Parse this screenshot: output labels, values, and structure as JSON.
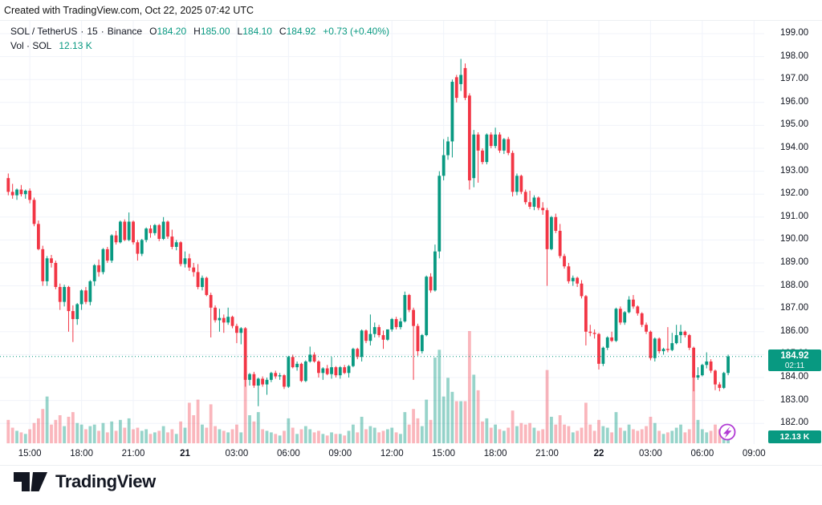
{
  "topbar": {
    "text": "Created with TradingView.com, Oct 22, 2025 07:42 UTC"
  },
  "header": {
    "symbol": "SOL / TetherUS",
    "separator": "·",
    "interval": "15",
    "exchange": "Binance",
    "o_label": "O",
    "o_value": "184.20",
    "h_label": "H",
    "h_value": "185.00",
    "l_label": "L",
    "l_value": "184.10",
    "c_label": "C",
    "c_value": "184.92",
    "change": "+0.73 (+0.40%)"
  },
  "legend": {
    "vol_label": "Vol · SOL",
    "vol_value": "12.13 K"
  },
  "price_line": {
    "price": "184.92",
    "price_value": 184.92,
    "countdown": "02:11"
  },
  "volume_badge": {
    "value": "12.13 K"
  },
  "footer": {
    "brand": "TradingView"
  },
  "colors": {
    "up": "#089981",
    "down": "#F23645",
    "vol_up": "rgba(8,153,129,0.42)",
    "vol_down": "rgba(242,54,69,0.36)",
    "grid": "#F0F3FA",
    "axis_text": "#131722",
    "badge": "#089981",
    "flame": "#B13BD4"
  },
  "price_axis": {
    "labels": [
      "199.00",
      "198.00",
      "197.00",
      "196.00",
      "195.00",
      "194.00",
      "193.00",
      "192.00",
      "191.00",
      "190.00",
      "189.00",
      "188.00",
      "187.00",
      "186.00",
      "185.00",
      "184.00",
      "183.00",
      "182.00"
    ],
    "min": 182,
    "max": 199
  },
  "time_axis": {
    "ticks": [
      {
        "label": "15:00",
        "i": 5,
        "bold": false
      },
      {
        "label": "18:00",
        "i": 17,
        "bold": false
      },
      {
        "label": "21:00",
        "i": 29,
        "bold": false
      },
      {
        "label": "21",
        "i": 41,
        "bold": true
      },
      {
        "label": "03:00",
        "i": 53,
        "bold": false
      },
      {
        "label": "06:00",
        "i": 65,
        "bold": false
      },
      {
        "label": "09:00",
        "i": 77,
        "bold": false
      },
      {
        "label": "12:00",
        "i": 89,
        "bold": false
      },
      {
        "label": "15:00",
        "i": 101,
        "bold": false
      },
      {
        "label": "18:00",
        "i": 113,
        "bold": false
      },
      {
        "label": "21:00",
        "i": 125,
        "bold": false
      },
      {
        "label": "22",
        "i": 137,
        "bold": true
      },
      {
        "label": "03:00",
        "i": 149,
        "bold": false
      },
      {
        "label": "06:00",
        "i": 161,
        "bold": false
      },
      {
        "label": "09:00",
        "i": 173,
        "bold": false
      }
    ]
  },
  "chart_data": {
    "type": "candlestick",
    "title": "SOL / TetherUS · 15 · Binance",
    "interval_minutes": 15,
    "first_bar_time": "Oct 20 13:45 UTC",
    "last_bar_time": "Oct 22 07:30 UTC",
    "ylim": [
      182,
      199
    ],
    "grid": true,
    "last_price": 184.92,
    "last_volume_k": 12.13,
    "columns": [
      "open",
      "high",
      "low",
      "close",
      "volume_k"
    ],
    "volume_axis": {
      "max_k": 72
    },
    "candles": [
      [
        192.7,
        192.9,
        191.95,
        192.1,
        15
      ],
      [
        192.1,
        192.45,
        191.8,
        191.95,
        10
      ],
      [
        191.95,
        192.25,
        191.75,
        192.2,
        8
      ],
      [
        192.2,
        192.4,
        191.9,
        192.0,
        7
      ],
      [
        192.0,
        192.2,
        191.8,
        192.15,
        6
      ],
      [
        192.15,
        192.25,
        191.6,
        191.75,
        9
      ],
      [
        191.75,
        191.85,
        190.6,
        190.7,
        13
      ],
      [
        190.7,
        190.85,
        189.55,
        189.6,
        16
      ],
      [
        189.6,
        189.75,
        188.0,
        188.2,
        22
      ],
      [
        188.2,
        189.3,
        188.0,
        189.2,
        30
      ],
      [
        189.2,
        189.35,
        188.8,
        189.0,
        12
      ],
      [
        189.0,
        189.1,
        187.85,
        187.95,
        15
      ],
      [
        187.95,
        188.1,
        186.95,
        187.3,
        18
      ],
      [
        187.3,
        188.05,
        187.1,
        187.95,
        11
      ],
      [
        187.95,
        188.0,
        186.0,
        186.9,
        17
      ],
      [
        186.9,
        187.15,
        185.55,
        186.55,
        20
      ],
      [
        186.55,
        187.25,
        186.3,
        187.2,
        13
      ],
      [
        187.2,
        187.85,
        186.95,
        187.8,
        12
      ],
      [
        187.8,
        187.95,
        187.2,
        187.3,
        9
      ],
      [
        187.3,
        188.25,
        187.15,
        188.2,
        11
      ],
      [
        188.2,
        188.95,
        188.0,
        188.9,
        12
      ],
      [
        188.9,
        189.15,
        188.4,
        188.6,
        8
      ],
      [
        188.6,
        189.65,
        188.5,
        189.6,
        13
      ],
      [
        189.6,
        189.7,
        189.0,
        189.1,
        7
      ],
      [
        189.1,
        190.25,
        189.0,
        190.2,
        14
      ],
      [
        190.2,
        190.4,
        189.8,
        189.9,
        8
      ],
      [
        189.9,
        190.85,
        189.85,
        190.8,
        15
      ],
      [
        190.8,
        190.9,
        189.95,
        190.0,
        10
      ],
      [
        190.0,
        191.2,
        189.95,
        190.8,
        16
      ],
      [
        190.8,
        190.85,
        189.8,
        189.9,
        9
      ],
      [
        189.9,
        190.0,
        189.1,
        189.4,
        10
      ],
      [
        189.4,
        190.05,
        189.3,
        190.0,
        8
      ],
      [
        190.0,
        190.55,
        189.9,
        190.5,
        9
      ],
      [
        190.5,
        190.65,
        190.1,
        190.3,
        6
      ],
      [
        190.3,
        190.7,
        190.2,
        190.65,
        7
      ],
      [
        190.65,
        190.7,
        189.95,
        190.05,
        8
      ],
      [
        190.05,
        191.0,
        190.0,
        190.8,
        11
      ],
      [
        190.8,
        190.85,
        190.05,
        190.15,
        7
      ],
      [
        190.15,
        190.45,
        189.6,
        189.7,
        9
      ],
      [
        189.7,
        190.0,
        189.55,
        189.9,
        6
      ],
      [
        189.9,
        189.95,
        188.85,
        188.95,
        14
      ],
      [
        188.95,
        189.5,
        188.8,
        189.2,
        10
      ],
      [
        189.2,
        189.4,
        188.65,
        188.8,
        26
      ],
      [
        188.8,
        189.0,
        188.4,
        188.6,
        18
      ],
      [
        188.6,
        188.95,
        187.85,
        187.95,
        28
      ],
      [
        187.95,
        188.45,
        187.8,
        188.35,
        12
      ],
      [
        188.35,
        188.4,
        187.55,
        187.6,
        10
      ],
      [
        187.6,
        187.7,
        185.75,
        187.05,
        25
      ],
      [
        187.05,
        187.15,
        186.4,
        186.5,
        11
      ],
      [
        186.5,
        187.0,
        186.0,
        186.6,
        9
      ],
      [
        186.6,
        186.75,
        185.95,
        186.4,
        8
      ],
      [
        186.4,
        187.05,
        186.3,
        186.65,
        7
      ],
      [
        186.65,
        186.7,
        186.15,
        186.25,
        9
      ],
      [
        186.25,
        186.35,
        185.5,
        185.95,
        12
      ],
      [
        185.95,
        186.2,
        185.45,
        186.15,
        7
      ],
      [
        186.15,
        186.2,
        183.6,
        183.9,
        45
      ],
      [
        183.9,
        184.2,
        183.65,
        184.15,
        18
      ],
      [
        184.15,
        184.25,
        183.55,
        183.65,
        14
      ],
      [
        183.65,
        184.0,
        182.75,
        183.95,
        20
      ],
      [
        183.95,
        184.05,
        183.6,
        183.7,
        9
      ],
      [
        183.7,
        184.0,
        183.25,
        183.9,
        8
      ],
      [
        183.9,
        184.25,
        183.8,
        184.2,
        7
      ],
      [
        184.2,
        184.3,
        183.95,
        184.05,
        6
      ],
      [
        184.05,
        184.2,
        183.9,
        184.1,
        5
      ],
      [
        184.1,
        184.15,
        183.5,
        183.6,
        8
      ],
      [
        183.6,
        184.95,
        183.55,
        184.9,
        16
      ],
      [
        184.9,
        185.0,
        184.4,
        184.45,
        10
      ],
      [
        184.45,
        184.7,
        184.3,
        184.6,
        6
      ],
      [
        184.6,
        184.65,
        183.8,
        183.85,
        9
      ],
      [
        183.85,
        184.75,
        183.8,
        184.7,
        11
      ],
      [
        184.7,
        185.35,
        184.65,
        185.0,
        9
      ],
      [
        185.0,
        185.1,
        184.65,
        184.7,
        7
      ],
      [
        184.7,
        184.75,
        184.0,
        184.2,
        8
      ],
      [
        184.2,
        184.45,
        183.9,
        184.4,
        6
      ],
      [
        184.4,
        184.55,
        184.1,
        184.15,
        5
      ],
      [
        184.15,
        184.9,
        183.95,
        184.45,
        7
      ],
      [
        184.45,
        184.5,
        184.0,
        184.1,
        6
      ],
      [
        184.1,
        184.5,
        183.95,
        184.45,
        6
      ],
      [
        184.45,
        184.55,
        184.15,
        184.2,
        5
      ],
      [
        184.2,
        184.55,
        184.0,
        184.5,
        8
      ],
      [
        184.5,
        185.3,
        184.45,
        185.25,
        12
      ],
      [
        185.25,
        185.3,
        184.8,
        184.9,
        7
      ],
      [
        184.9,
        186.1,
        184.7,
        186.05,
        17
      ],
      [
        186.05,
        186.1,
        185.5,
        185.6,
        9
      ],
      [
        185.6,
        186.75,
        185.4,
        185.9,
        11
      ],
      [
        185.9,
        186.4,
        185.75,
        186.2,
        10
      ],
      [
        186.2,
        186.3,
        185.75,
        185.85,
        7
      ],
      [
        185.85,
        186.05,
        185.25,
        185.65,
        8
      ],
      [
        185.65,
        186.1,
        185.6,
        186.1,
        9
      ],
      [
        186.1,
        186.6,
        186.0,
        186.55,
        10
      ],
      [
        186.55,
        186.65,
        186.1,
        186.2,
        7
      ],
      [
        186.2,
        186.6,
        186.1,
        186.45,
        6
      ],
      [
        186.45,
        187.75,
        186.4,
        187.6,
        20
      ],
      [
        187.6,
        187.65,
        186.85,
        186.95,
        12
      ],
      [
        186.95,
        187.05,
        183.9,
        186.25,
        22
      ],
      [
        186.25,
        186.35,
        184.95,
        185.15,
        16
      ],
      [
        185.15,
        185.9,
        185.05,
        185.85,
        11
      ],
      [
        185.85,
        188.45,
        185.8,
        188.4,
        28
      ],
      [
        188.4,
        188.55,
        187.7,
        187.8,
        15
      ],
      [
        187.8,
        189.8,
        187.75,
        189.5,
        55
      ],
      [
        189.5,
        193.0,
        189.2,
        192.8,
        60
      ],
      [
        192.8,
        194.4,
        192.6,
        193.7,
        30
      ],
      [
        193.7,
        194.5,
        193.5,
        194.3,
        42
      ],
      [
        194.3,
        197.0,
        193.6,
        196.9,
        33
      ],
      [
        197.1,
        197.2,
        196.0,
        196.2,
        27
      ],
      [
        196.8,
        197.9,
        196.5,
        197.2,
        27
      ],
      [
        197.5,
        197.7,
        196.1,
        196.2,
        27
      ],
      [
        196.3,
        196.4,
        192.2,
        192.6,
        72
      ],
      [
        192.7,
        194.8,
        192.3,
        194.6,
        44
      ],
      [
        194.6,
        194.7,
        192.5,
        193.9,
        34
      ],
      [
        193.9,
        194.0,
        193.3,
        193.4,
        14
      ],
      [
        193.4,
        194.65,
        193.3,
        194.6,
        16
      ],
      [
        194.6,
        194.7,
        194.0,
        194.1,
        10
      ],
      [
        194.1,
        194.9,
        194.0,
        194.6,
        12
      ],
      [
        194.6,
        194.7,
        193.8,
        193.9,
        9
      ],
      [
        193.9,
        194.45,
        193.75,
        194.4,
        8
      ],
      [
        194.4,
        194.5,
        193.7,
        193.8,
        10
      ],
      [
        193.8,
        193.9,
        191.9,
        192.1,
        21
      ],
      [
        192.1,
        192.9,
        191.95,
        192.8,
        11
      ],
      [
        192.8,
        192.85,
        192.0,
        192.1,
        13
      ],
      [
        192.1,
        192.2,
        191.55,
        191.65,
        12
      ],
      [
        191.65,
        192.15,
        191.35,
        191.45,
        13
      ],
      [
        191.45,
        191.95,
        191.3,
        191.85,
        10
      ],
      [
        191.85,
        191.9,
        191.3,
        191.4,
        8
      ],
      [
        191.4,
        191.65,
        191.1,
        191.3,
        9
      ],
      [
        191.3,
        191.4,
        188.0,
        189.6,
        47
      ],
      [
        189.6,
        191.05,
        189.55,
        191.0,
        17
      ],
      [
        191.0,
        191.15,
        190.3,
        190.4,
        12
      ],
      [
        190.4,
        190.7,
        189.2,
        189.3,
        18
      ],
      [
        189.3,
        189.4,
        188.75,
        188.85,
        12
      ],
      [
        188.85,
        189.0,
        188.1,
        188.2,
        11
      ],
      [
        188.2,
        188.45,
        188.0,
        188.35,
        7
      ],
      [
        188.35,
        188.4,
        187.95,
        188.1,
        8
      ],
      [
        188.1,
        188.25,
        187.45,
        187.55,
        10
      ],
      [
        187.55,
        187.6,
        185.4,
        186.0,
        26
      ],
      [
        186.0,
        186.3,
        185.8,
        185.95,
        12
      ],
      [
        185.95,
        186.1,
        185.7,
        185.9,
        8
      ],
      [
        185.9,
        185.95,
        184.35,
        184.6,
        15
      ],
      [
        184.6,
        185.35,
        184.5,
        185.3,
        11
      ],
      [
        185.3,
        185.8,
        185.2,
        185.75,
        10
      ],
      [
        185.75,
        186.0,
        185.55,
        185.6,
        7
      ],
      [
        185.6,
        187.05,
        185.55,
        187.0,
        20
      ],
      [
        187.0,
        187.1,
        186.3,
        186.4,
        10
      ],
      [
        186.4,
        186.9,
        186.3,
        186.85,
        8
      ],
      [
        186.85,
        187.55,
        186.8,
        187.4,
        12
      ],
      [
        187.4,
        187.6,
        187.0,
        187.1,
        9
      ],
      [
        187.1,
        187.15,
        186.7,
        186.8,
        8
      ],
      [
        186.8,
        186.85,
        186.2,
        186.3,
        9
      ],
      [
        186.3,
        186.4,
        185.9,
        186.0,
        11
      ],
      [
        186.0,
        186.05,
        184.75,
        184.85,
        17
      ],
      [
        184.85,
        185.75,
        184.7,
        185.7,
        13
      ],
      [
        185.7,
        185.75,
        185.05,
        185.15,
        8
      ],
      [
        185.15,
        185.3,
        185.0,
        185.25,
        6
      ],
      [
        185.25,
        186.2,
        185.1,
        185.2,
        7
      ],
      [
        185.2,
        185.95,
        185.15,
        185.5,
        8
      ],
      [
        185.5,
        186.3,
        185.45,
        185.85,
        10
      ],
      [
        185.85,
        186.3,
        185.5,
        186.0,
        12
      ],
      [
        186.0,
        186.05,
        185.75,
        185.85,
        7
      ],
      [
        185.85,
        185.9,
        185.2,
        185.3,
        9
      ],
      [
        185.3,
        185.35,
        183.4,
        184.0,
        46
      ],
      [
        184.0,
        184.45,
        183.9,
        184.1,
        15
      ],
      [
        184.1,
        184.6,
        184.05,
        184.55,
        9
      ],
      [
        184.55,
        185.1,
        184.4,
        184.7,
        7
      ],
      [
        184.7,
        184.8,
        184.2,
        184.3,
        8
      ],
      [
        184.3,
        184.35,
        183.45,
        183.7,
        12
      ],
      [
        183.7,
        183.8,
        183.4,
        183.55,
        9
      ],
      [
        183.55,
        184.25,
        183.5,
        184.2,
        10
      ],
      [
        184.2,
        185.0,
        184.1,
        184.92,
        12.13
      ]
    ]
  }
}
